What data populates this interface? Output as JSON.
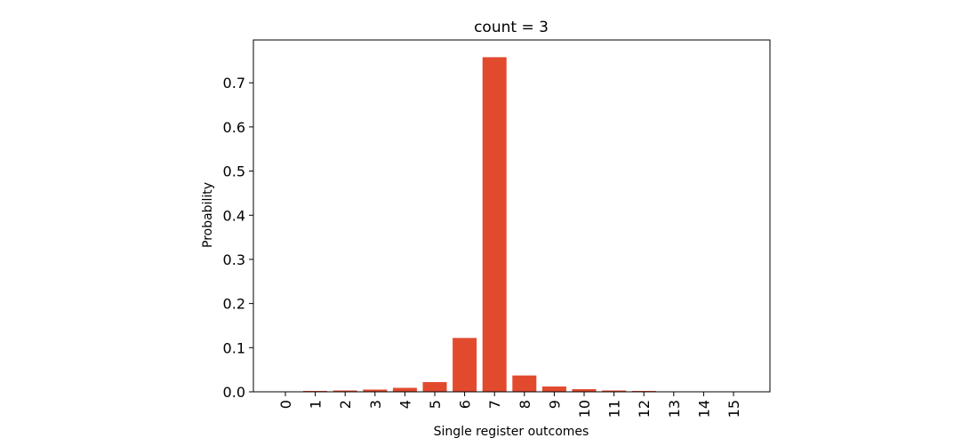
{
  "chart_data": {
    "type": "bar",
    "title": "count = 3",
    "xlabel": "Single register outcomes",
    "ylabel": "Probability",
    "categories": [
      "0",
      "1",
      "2",
      "3",
      "4",
      "5",
      "6",
      "7",
      "8",
      "9",
      "10",
      "11",
      "12",
      "13",
      "14",
      "15"
    ],
    "values": [
      0.001,
      0.002,
      0.003,
      0.005,
      0.009,
      0.022,
      0.122,
      0.758,
      0.037,
      0.012,
      0.006,
      0.003,
      0.002,
      0.001,
      0.001,
      0.001
    ],
    "yticks": [
      "0.0",
      "0.1",
      "0.2",
      "0.3",
      "0.4",
      "0.5",
      "0.6",
      "0.7"
    ],
    "ylim": [
      0,
      0.797
    ],
    "bar_color": "#e24a2e",
    "grid": false,
    "legend": "none"
  }
}
